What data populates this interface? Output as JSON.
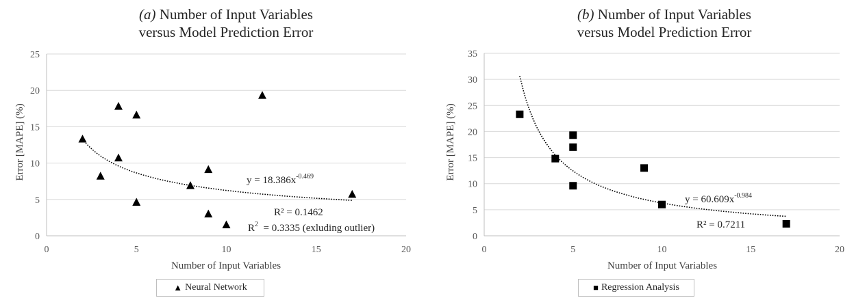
{
  "chart_data": [
    {
      "type": "scatter",
      "panel": "a",
      "title_prefix": "(a)",
      "title_line1": "Number of Input Variables",
      "title_line2": "versus Model Prediction Error",
      "xlabel": "Number of Input Variables",
      "ylabel": "Error [MAPE] (%)",
      "xlim": [
        0,
        20
      ],
      "ylim": [
        0,
        25
      ],
      "xticks": [
        0,
        5,
        10,
        15,
        20
      ],
      "yticks": [
        0,
        5,
        10,
        15,
        20,
        25
      ],
      "grid": "horizontal",
      "marker": "triangle",
      "legend_placement": "bottom",
      "series": [
        {
          "name": "Neural Network",
          "x": [
            2,
            3,
            4,
            4,
            5,
            5,
            8,
            9,
            9,
            10,
            12,
            17
          ],
          "y": [
            13.3,
            8.2,
            17.8,
            10.7,
            16.6,
            4.6,
            6.9,
            9.1,
            3.0,
            1.5,
            19.3,
            5.7
          ]
        }
      ],
      "trendline": {
        "type": "power",
        "a": 18.386,
        "b": -0.469,
        "x_from": 2,
        "x_to": 17
      },
      "annotations": {
        "eq_main": "y = 18.386x",
        "eq_exp": "-0.469",
        "r2_line1": "R² = 0.1462",
        "r2_line2": "R",
        "r2_line2_sup": "2",
        "r2_line2_rest": "  = 0.3335 (exluding outlier)"
      }
    },
    {
      "type": "scatter",
      "panel": "b",
      "title_prefix": "(b)",
      "title_line1": "Number of Input Variables",
      "title_line2": "versus Model Prediction Error",
      "xlabel": "Number of Input Variables",
      "ylabel": "Error [MAPE] (%)",
      "xlim": [
        0,
        20
      ],
      "ylim": [
        0,
        35
      ],
      "xticks": [
        0,
        5,
        10,
        15,
        20
      ],
      "yticks": [
        0,
        5,
        10,
        15,
        20,
        25,
        30,
        35
      ],
      "grid": "horizontal",
      "marker": "square",
      "legend_placement": "bottom",
      "series": [
        {
          "name": "Regression Analysis",
          "x": [
            2,
            4,
            5,
            5,
            5,
            9,
            10,
            17
          ],
          "y": [
            23.3,
            14.8,
            19.3,
            17.0,
            9.6,
            13.0,
            6.0,
            2.3
          ]
        }
      ],
      "trendline": {
        "type": "power",
        "a": 60.609,
        "b": -0.984,
        "x_from": 2,
        "x_to": 17
      },
      "annotations": {
        "eq_main": "y = 60.609x",
        "eq_exp": "-0.984",
        "r2_line1": "R² = 0.7211"
      }
    }
  ],
  "legend_symbols": {
    "a": "▲",
    "b": "■"
  }
}
